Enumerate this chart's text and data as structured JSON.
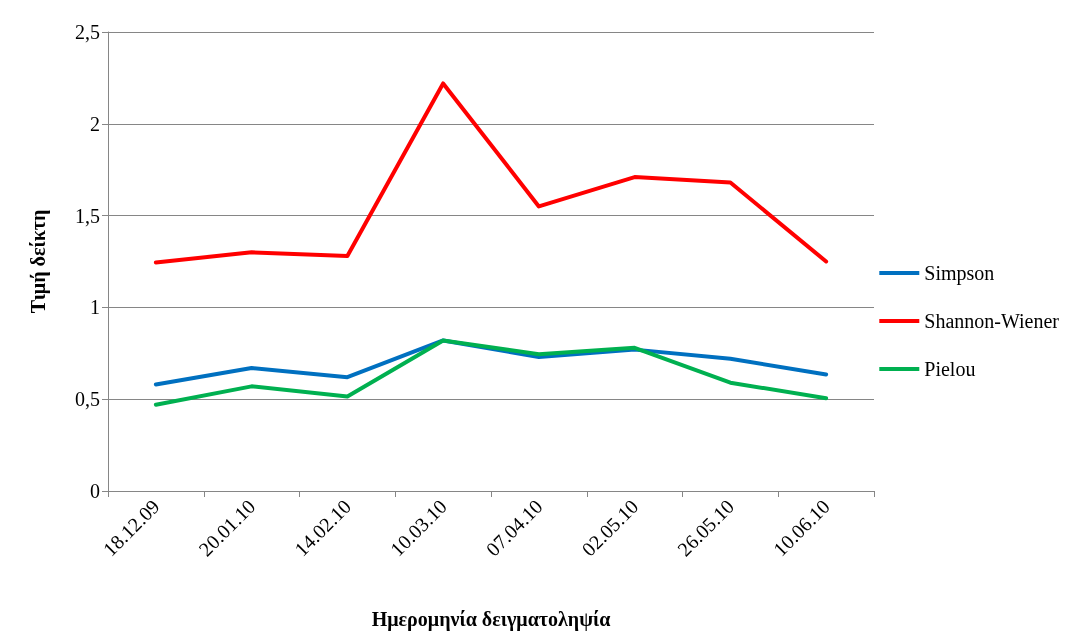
{
  "chart_data": {
    "type": "line",
    "xlabel": "Ημερομηνία δειγματοληψία",
    "ylabel": "Τιμή δείκτη",
    "categories": [
      "18.12.09",
      "20.01.10",
      "14.02.10",
      "10.03.10",
      "07.04.10",
      "02.05.10",
      "26.05.10",
      "10.06.10"
    ],
    "series": [
      {
        "name": "Simpson",
        "color": "#0070c0",
        "values": [
          0.58,
          0.67,
          0.62,
          0.82,
          0.73,
          0.77,
          0.72,
          0.635
        ]
      },
      {
        "name": "Shannon-Wiener",
        "color": "#ff0000",
        "values": [
          1.245,
          1.3,
          1.28,
          2.22,
          1.55,
          1.71,
          1.68,
          1.25
        ]
      },
      {
        "name": "Pielou",
        "color": "#00b050",
        "values": [
          0.47,
          0.57,
          0.515,
          0.82,
          0.745,
          0.78,
          0.59,
          0.505
        ]
      }
    ],
    "ylim": [
      0,
      2.5
    ],
    "yticks": [
      0,
      {
        "value": 0.5,
        "label": "0,5"
      },
      1,
      {
        "value": 1.5,
        "label": "1,5"
      },
      2,
      {
        "value": 2.5,
        "label": "2,5"
      }
    ],
    "grid": "y",
    "legend": "right",
    "marker": "none",
    "line_style": "solid"
  }
}
